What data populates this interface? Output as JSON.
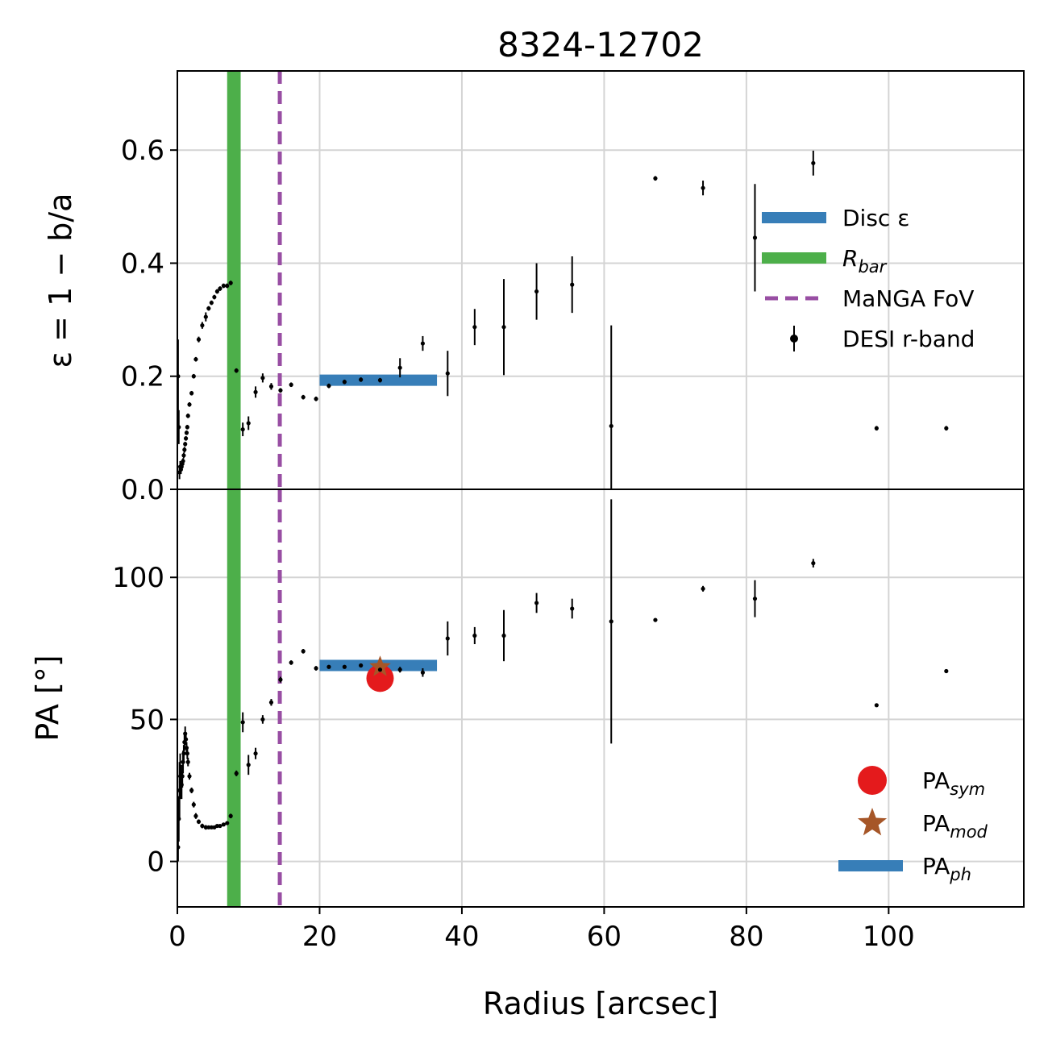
{
  "chart_data": {
    "type": "scatter",
    "title": "8324-12702",
    "xlabel": "Radius [arcsec]",
    "xlim": [
      0,
      119
    ],
    "xticks": [
      0,
      20,
      40,
      60,
      80,
      100
    ],
    "xtick_labels": [
      "0",
      "20",
      "40",
      "60",
      "80",
      "100"
    ],
    "grid": true,
    "panels": [
      {
        "id": "ellipticity",
        "ylabel": "ε = 1 − b/a",
        "ylim": [
          0.0,
          0.74
        ],
        "yticks": [
          0.0,
          0.2,
          0.4,
          0.6
        ],
        "ytick_labels": [
          "0.0",
          "0.2",
          "0.4",
          "0.6"
        ],
        "legend_position": "center-right",
        "series": [
          {
            "name": "DESI r-band",
            "color": "#000000",
            "marker": "point",
            "x": [
              0.1,
              0.2,
              0.3,
              0.4,
              0.5,
              0.6,
              0.7,
              0.8,
              0.9,
              1.0,
              1.1,
              1.2,
              1.3,
              1.4,
              1.5,
              1.7,
              2.0,
              2.3,
              2.6,
              3.0,
              3.5,
              4.0,
              4.4,
              4.8,
              5.2,
              5.6,
              6.0,
              6.5,
              7.0,
              7.5,
              8.3,
              9.2,
              10.0,
              11.0,
              12.0,
              13.2,
              14.5,
              16.0,
              17.7,
              19.5,
              21.3,
              23.5,
              25.8,
              28.5,
              31.3,
              34.5,
              38.0,
              41.8,
              45.9,
              50.5,
              55.5,
              61.0,
              67.2,
              73.9,
              81.2,
              89.4,
              98.3,
              108.1
            ],
            "y": [
              0.2,
              0.11,
              0.03,
              0.04,
              0.035,
              0.04,
              0.045,
              0.05,
              0.06,
              0.07,
              0.08,
              0.09,
              0.1,
              0.11,
              0.13,
              0.15,
              0.17,
              0.2,
              0.23,
              0.265,
              0.29,
              0.305,
              0.32,
              0.33,
              0.34,
              0.35,
              0.355,
              0.36,
              0.36,
              0.365,
              0.21,
              0.106,
              0.117,
              0.172,
              0.197,
              0.182,
              0.175,
              0.185,
              0.163,
              0.16,
              0.183,
              0.19,
              0.194,
              0.193,
              0.215,
              0.258,
              0.205,
              0.287,
              0.287,
              0.35,
              0.362,
              0.112,
              0.55,
              0.533,
              0.445,
              0.577,
              0.108,
              0.108
            ],
            "yerr": [
              0.065,
              0.03,
              0.012,
              0.01,
              0.008,
              0.007,
              0.006,
              0.005,
              0.005,
              0.005,
              0.004,
              0.004,
              0.004,
              0.004,
              0.004,
              0.004,
              0.004,
              0.004,
              0.004,
              0.005,
              0.006,
              0.008,
              0.004,
              0.004,
              0.004,
              0.004,
              0.004,
              0.004,
              0.004,
              0.004,
              0.004,
              0.012,
              0.012,
              0.01,
              0.008,
              0.006,
              0.004,
              0.004,
              0.004,
              0.004,
              0.004,
              0.004,
              0.004,
              0.004,
              0.017,
              0.013,
              0.04,
              0.032,
              0.085,
              0.05,
              0.05,
              0.178,
              0.004,
              0.013,
              0.095,
              0.022,
              0.004,
              0.004
            ]
          }
        ],
        "lines": [
          {
            "name": "Disc ε",
            "type": "hline",
            "color": "#377eb8",
            "y": 0.193,
            "xmin": 20.0,
            "xmax": 36.5
          }
        ],
        "legend": [
          {
            "name": "Disc ε",
            "kind": "line",
            "color": "#377eb8"
          },
          {
            "name": "R",
            "sub": "bar",
            "kind": "line",
            "color": "#4daf4a"
          },
          {
            "name": "MaNGA FoV",
            "kind": "dashed",
            "color": "#984ea3"
          },
          {
            "name": "DESI r-band",
            "kind": "errorbar",
            "color": "#000000"
          }
        ]
      },
      {
        "id": "position-angle",
        "ylabel": "PA [°]",
        "ylim": [
          -16,
          131
        ],
        "yticks": [
          0,
          50,
          100
        ],
        "ytick_labels": [
          "0",
          "50",
          "100"
        ],
        "legend_position": "lower-right",
        "series": [
          {
            "name": "DESI r-band",
            "color": "#000000",
            "marker": "point",
            "x": [
              0.1,
              0.2,
              0.3,
              0.4,
              0.5,
              0.6,
              0.7,
              0.8,
              0.9,
              1.0,
              1.1,
              1.2,
              1.3,
              1.4,
              1.5,
              1.7,
              2.0,
              2.3,
              2.6,
              3.0,
              3.5,
              4.0,
              4.4,
              4.8,
              5.2,
              5.6,
              6.0,
              6.5,
              7.0,
              7.5,
              8.3,
              9.2,
              10.0,
              11.0,
              12.0,
              13.2,
              14.5,
              16.0,
              17.7,
              19.5,
              21.3,
              23.5,
              25.8,
              28.5,
              31.3,
              34.5,
              38.0,
              41.8,
              45.9,
              50.5,
              55.5,
              61.0,
              67.2,
              73.9,
              81.2,
              89.4,
              98.3,
              108.1
            ],
            "y": [
              5,
              15,
              25,
              30,
              28,
              27,
              30,
              35,
              38,
              42,
              45,
              43,
              40,
              38,
              35,
              30,
              25,
              20,
              16,
              14,
              12.5,
              12,
              12,
              12,
              12,
              12.5,
              12.5,
              13,
              13.5,
              16,
              31,
              49,
              34,
              38,
              50,
              56,
              64,
              70,
              74,
              68,
              68.5,
              68.5,
              69,
              67.5,
              67.5,
              66.5,
              78.5,
              79.5,
              79.5,
              91,
              89,
              84.5,
              85,
              96,
              92.5,
              105,
              55,
              67
            ],
            "yerr": [
              5,
              8,
              10,
              8,
              6,
              5,
              4,
              4,
              3,
              3,
              2.5,
              2,
              2,
              2,
              1.5,
              1.2,
              1,
              1,
              1,
              0.8,
              0.8,
              0.8,
              0.6,
              0.6,
              0.6,
              0.6,
              0.6,
              0.6,
              0.6,
              0.8,
              1,
              3.5,
              3.5,
              2,
              1.5,
              1.2,
              1,
              0.8,
              0.8,
              0.8,
              0.6,
              0.6,
              0.6,
              0.6,
              1,
              1.5,
              6,
              3,
              9,
              3.5,
              3.5,
              43,
              0.6,
              1,
              6.5,
              1.5,
              0.6,
              0.6
            ]
          }
        ],
        "markers": [
          {
            "name": "PA",
            "sub": "sym",
            "shape": "circle",
            "color": "#e41a1c",
            "x": 28.5,
            "y": 64.5
          },
          {
            "name": "PA",
            "sub": "mod",
            "shape": "star",
            "color": "#a65628",
            "x": 28.5,
            "y": 68.5
          }
        ],
        "lines": [
          {
            "name": "PA",
            "sub": "ph",
            "type": "hline",
            "color": "#377eb8",
            "y": 69,
            "xmin": 20.0,
            "xmax": 36.5
          }
        ],
        "legend": [
          {
            "name": "PA",
            "sub": "sym",
            "kind": "circle",
            "color": "#e41a1c"
          },
          {
            "name": "PA",
            "sub": "mod",
            "kind": "star",
            "color": "#a65628"
          },
          {
            "name": "PA",
            "sub": "ph",
            "kind": "line",
            "color": "#377eb8"
          }
        ]
      }
    ],
    "vertical_markers": [
      {
        "name": "R_bar",
        "color": "#4daf4a",
        "style": "band",
        "xmin": 7.0,
        "xmax": 8.9
      },
      {
        "name": "MaNGA FoV",
        "color": "#984ea3",
        "style": "dashed",
        "x": 14.4
      }
    ]
  }
}
